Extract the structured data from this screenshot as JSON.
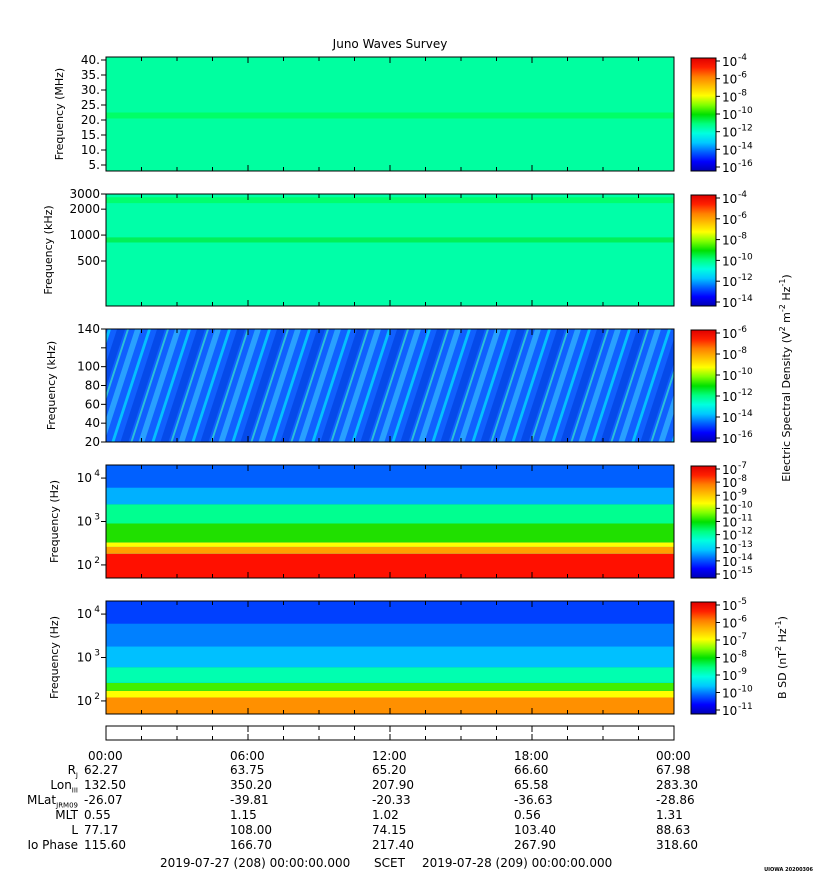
{
  "title": "Juno Waves Survey",
  "colorscale": [
    "#0000b4",
    "#0000ff",
    "#0060ff",
    "#00c8ff",
    "#00ffe0",
    "#00ff80",
    "#00e000",
    "#80ff00",
    "#ffff00",
    "#ffc000",
    "#ff8000",
    "#ff2000",
    "#e00000"
  ],
  "chart_data": [
    {
      "type": "heatmap",
      "name": "panel-1-mhz",
      "ylabel": "Frequency (MHz)",
      "yscale": "linear",
      "ylim": [
        3,
        41
      ],
      "yticks": [
        5,
        10,
        15,
        20,
        25,
        30,
        35,
        40
      ],
      "ytick_labels": [
        "5.",
        "10.",
        "15.",
        "20.",
        "25.",
        "30.",
        "35.",
        "40."
      ],
      "colorbar_labels": [
        "10-4",
        "10-6",
        "10-8",
        "10-10",
        "10-12",
        "10-14",
        "10-16"
      ],
      "colorbar_exponents": [
        "-4",
        "-6",
        "-8",
        "-10",
        "-12",
        "-14",
        "-16"
      ],
      "background": "#00ffa0",
      "bands": [
        {
          "from": 20.5,
          "to": 22.5,
          "color": "#00ff60",
          "strength": 0.9
        }
      ]
    },
    {
      "type": "heatmap",
      "name": "panel-2-khz-high",
      "ylabel": "Frequency (kHz)",
      "yscale": "log",
      "ylim": [
        150,
        3000
      ],
      "yticks": [
        500,
        1000,
        2000,
        3000
      ],
      "ytick_labels": [
        "500",
        "1000",
        "2000",
        "3000"
      ],
      "colorbar_labels": [
        "10-4",
        "10-6",
        "10-8",
        "10-10",
        "10-12",
        "10-14"
      ],
      "colorbar_exponents": [
        "-4",
        "-6",
        "-8",
        "-10",
        "-12",
        "-14"
      ],
      "background": "#00ffa8",
      "bands": [
        {
          "from": 2350,
          "to": 2750,
          "color": "#00ff60",
          "strength": 0.8
        },
        {
          "from": 820,
          "to": 940,
          "color": "#00f050",
          "strength": 0.9
        }
      ]
    },
    {
      "type": "heatmap",
      "name": "panel-3-khz-low",
      "ylabel": "Frequency (kHz)",
      "yscale": "linear",
      "ylim": [
        20,
        140
      ],
      "yticks": [
        20,
        40,
        60,
        80,
        100,
        120,
        140
      ],
      "ytick_labels": [
        "20",
        "40",
        "60",
        "80",
        "100",
        "",
        "140"
      ],
      "colorbar_labels": [
        "10-6",
        "10-8",
        "10-10",
        "10-12",
        "10-14",
        "10-16"
      ],
      "colorbar_exponents": [
        "-6",
        "-8",
        "-10",
        "-12",
        "-14",
        "-16"
      ],
      "colorbar_title": "Electric Spectral Density (V",
      "colorbar_title_parts": [
        "Electric Spectral Density (V",
        "2",
        " m",
        "-2",
        " Hz",
        "-1",
        ")"
      ],
      "background": "#1060ff",
      "bands": []
    },
    {
      "type": "heatmap",
      "name": "panel-4-hz-electric",
      "ylabel": "Frequency (Hz)",
      "yscale": "log",
      "ylim": [
        50,
        20000
      ],
      "yticks": [
        100,
        1000,
        10000
      ],
      "ytick_labels": [
        "10",
        "10",
        "10"
      ],
      "ytick_exponents": [
        "2",
        "3",
        "4"
      ],
      "colorbar_labels": [
        "10-7",
        "10-8",
        "10-9",
        "10-10",
        "10-11",
        "10-12",
        "10-13",
        "10-14",
        "10-15"
      ],
      "colorbar_exponents": [
        "-7",
        "-8",
        "-9",
        "-10",
        "-11",
        "-12",
        "-13",
        "-14",
        "-15"
      ],
      "background": "#0060ff",
      "bands": [
        {
          "from": 50,
          "to": 180,
          "color": "#ff1000",
          "strength": 1.0
        },
        {
          "from": 180,
          "to": 260,
          "color": "#ffa000",
          "strength": 1.0
        },
        {
          "from": 260,
          "to": 330,
          "color": "#ffff00",
          "strength": 1.0
        },
        {
          "from": 330,
          "to": 900,
          "color": "#20e000",
          "strength": 1.0
        },
        {
          "from": 900,
          "to": 2500,
          "color": "#00ff90",
          "strength": 1.0
        },
        {
          "from": 2500,
          "to": 6000,
          "color": "#00b0ff",
          "strength": 1.0
        }
      ]
    },
    {
      "type": "heatmap",
      "name": "panel-5-hz-magnetic",
      "ylabel": "Frequency (Hz)",
      "yscale": "log",
      "ylim": [
        50,
        20000
      ],
      "yticks": [
        100,
        1000,
        10000
      ],
      "ytick_labels": [
        "10",
        "10",
        "10"
      ],
      "ytick_exponents": [
        "2",
        "3",
        "4"
      ],
      "colorbar_labels": [
        "10-5",
        "10-6",
        "10-7",
        "10-8",
        "10-9",
        "10-10",
        "10-11"
      ],
      "colorbar_exponents": [
        "-5",
        "-6",
        "-7",
        "-8",
        "-9",
        "-10",
        "-11"
      ],
      "colorbar_title": "B SD (nT",
      "colorbar_title_parts": [
        "B SD (nT",
        "2",
        " Hz",
        "-1",
        ")"
      ],
      "background": "#0040ff",
      "bands": [
        {
          "from": 50,
          "to": 120,
          "color": "#ff9000",
          "strength": 1.0
        },
        {
          "from": 120,
          "to": 170,
          "color": "#ffff00",
          "strength": 1.0
        },
        {
          "from": 170,
          "to": 260,
          "color": "#40f000",
          "strength": 1.0
        },
        {
          "from": 260,
          "to": 600,
          "color": "#00ffb0",
          "strength": 1.0
        },
        {
          "from": 600,
          "to": 1800,
          "color": "#00c0ff",
          "strength": 1.0
        },
        {
          "from": 1800,
          "to": 6000,
          "color": "#0080ff",
          "strength": 1.0
        }
      ]
    }
  ],
  "time_axis": {
    "tick_labels": [
      "00:00",
      "06:00",
      "12:00",
      "18:00",
      "00:00"
    ]
  },
  "ephemeris": [
    {
      "label": "R",
      "sub": "J",
      "values": [
        "62.27",
        "63.75",
        "65.20",
        "66.60",
        "67.98"
      ]
    },
    {
      "label": "Lon",
      "sub": "III",
      "values": [
        "132.50",
        "350.20",
        "207.90",
        "65.58",
        "283.30"
      ]
    },
    {
      "label": "MLat",
      "sub": "JRM09",
      "values": [
        "-26.07",
        "-39.81",
        "-20.33",
        "-36.63",
        "-28.86"
      ]
    },
    {
      "label": "MLT",
      "sub": "",
      "values": [
        "0.55",
        "1.15",
        "1.02",
        "0.56",
        "1.31"
      ]
    },
    {
      "label": "L",
      "sub": "",
      "values": [
        "77.17",
        "108.00",
        "74.15",
        "103.40",
        "88.63"
      ]
    },
    {
      "label": "Io Phase",
      "sub": "",
      "values": [
        "115.60",
        "166.70",
        "217.40",
        "267.90",
        "318.60"
      ]
    }
  ],
  "footer": {
    "start": "2019-07-27 (208) 00:00:00.000",
    "scet": "SCET",
    "end": "2019-07-28 (209) 00:00:00.000"
  },
  "stamp": "UIOWA 20200306"
}
